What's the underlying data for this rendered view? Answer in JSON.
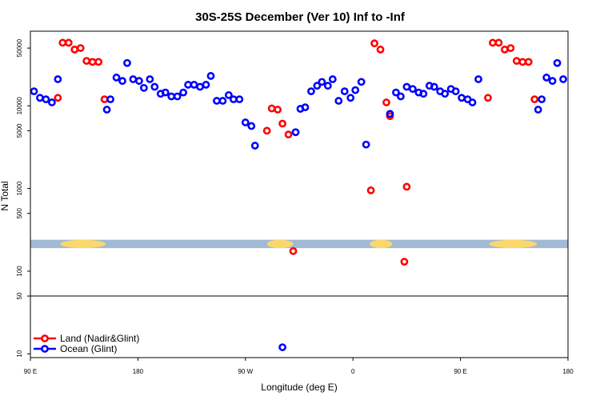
{
  "chart_data": {
    "type": "scatter",
    "title": "30S-25S December (Ver 10)   Inf to -Inf",
    "xlabel": "Longitude (deg E)",
    "ylabel": "N Total",
    "x_ticks": [
      {
        "value": 90,
        "label": "90 E"
      },
      {
        "value": 180,
        "label": "180"
      },
      {
        "value": 270,
        "label": "90 W"
      },
      {
        "value": 360,
        "label": "0"
      },
      {
        "value": 450,
        "label": "90 E"
      },
      {
        "value": 540,
        "label": "180"
      }
    ],
    "y_ticks": [
      {
        "value": 10,
        "label": "10"
      },
      {
        "value": 50,
        "label": "50"
      },
      {
        "value": 100,
        "label": "100"
      },
      {
        "value": 500,
        "label": "500"
      },
      {
        "value": 1000,
        "label": "1000"
      },
      {
        "value": 5000,
        "label": "5000"
      },
      {
        "value": 10000,
        "label": "10000"
      },
      {
        "value": 50000,
        "label": "50000"
      }
    ],
    "xlim": [
      90,
      540
    ],
    "ylim": [
      9,
      80000
    ],
    "y_scale": "log",
    "reference_line_y": 50,
    "land_band": {
      "y_range": [
        190,
        240
      ],
      "ocean_color": "#a2b9d6",
      "land_color": "#fad86b",
      "land_segments": [
        [
          115,
          153
        ],
        [
          288,
          310
        ],
        [
          374,
          393
        ],
        [
          474,
          514
        ]
      ]
    },
    "series": [
      {
        "name": "Land (Nadir&Glint)",
        "color": "#ff0000",
        "points": [
          {
            "x": 113,
            "y": 12500
          },
          {
            "x": 117,
            "y": 58000
          },
          {
            "x": 122,
            "y": 58000
          },
          {
            "x": 127,
            "y": 48000
          },
          {
            "x": 132,
            "y": 50000
          },
          {
            "x": 137,
            "y": 35000
          },
          {
            "x": 142,
            "y": 34000
          },
          {
            "x": 147,
            "y": 34000
          },
          {
            "x": 152,
            "y": 12000
          },
          {
            "x": 288,
            "y": 5000
          },
          {
            "x": 292,
            "y": 9300
          },
          {
            "x": 297,
            "y": 9000
          },
          {
            "x": 301,
            "y": 6100
          },
          {
            "x": 306,
            "y": 4500
          },
          {
            "x": 310,
            "y": 175
          },
          {
            "x": 375,
            "y": 950
          },
          {
            "x": 378,
            "y": 57000
          },
          {
            "x": 383,
            "y": 48000
          },
          {
            "x": 388,
            "y": 11000
          },
          {
            "x": 391,
            "y": 7500
          },
          {
            "x": 403,
            "y": 130
          },
          {
            "x": 405,
            "y": 1050
          },
          {
            "x": 473,
            "y": 12500
          },
          {
            "x": 477,
            "y": 58000
          },
          {
            "x": 482,
            "y": 58000
          },
          {
            "x": 487,
            "y": 48000
          },
          {
            "x": 492,
            "y": 50000
          },
          {
            "x": 497,
            "y": 35000
          },
          {
            "x": 502,
            "y": 34000
          },
          {
            "x": 507,
            "y": 34000
          },
          {
            "x": 512,
            "y": 12000
          }
        ]
      },
      {
        "name": "Ocean (Glint)",
        "color": "#0000ff",
        "points": [
          {
            "x": 93,
            "y": 15000
          },
          {
            "x": 98,
            "y": 12500
          },
          {
            "x": 103,
            "y": 12000
          },
          {
            "x": 108,
            "y": 11000
          },
          {
            "x": 113,
            "y": 21000
          },
          {
            "x": 154,
            "y": 9000
          },
          {
            "x": 157,
            "y": 12000
          },
          {
            "x": 162,
            "y": 22000
          },
          {
            "x": 167,
            "y": 20000
          },
          {
            "x": 171,
            "y": 33000
          },
          {
            "x": 176,
            "y": 21000
          },
          {
            "x": 181,
            "y": 20000
          },
          {
            "x": 185,
            "y": 16500
          },
          {
            "x": 190,
            "y": 21000
          },
          {
            "x": 194,
            "y": 17000
          },
          {
            "x": 199,
            "y": 14000
          },
          {
            "x": 203,
            "y": 14500
          },
          {
            "x": 208,
            "y": 13000
          },
          {
            "x": 213,
            "y": 13000
          },
          {
            "x": 218,
            "y": 14500
          },
          {
            "x": 222,
            "y": 18000
          },
          {
            "x": 227,
            "y": 18000
          },
          {
            "x": 232,
            "y": 17000
          },
          {
            "x": 237,
            "y": 18000
          },
          {
            "x": 241,
            "y": 23000
          },
          {
            "x": 246,
            "y": 11500
          },
          {
            "x": 251,
            "y": 11500
          },
          {
            "x": 256,
            "y": 13500
          },
          {
            "x": 260,
            "y": 12000
          },
          {
            "x": 265,
            "y": 12000
          },
          {
            "x": 270,
            "y": 6300
          },
          {
            "x": 275,
            "y": 5700
          },
          {
            "x": 278,
            "y": 3300
          },
          {
            "x": 312,
            "y": 4800
          },
          {
            "x": 316,
            "y": 9200
          },
          {
            "x": 320,
            "y": 9600
          },
          {
            "x": 325,
            "y": 15000
          },
          {
            "x": 330,
            "y": 17500
          },
          {
            "x": 334,
            "y": 19500
          },
          {
            "x": 339,
            "y": 17500
          },
          {
            "x": 343,
            "y": 21000
          },
          {
            "x": 348,
            "y": 11500
          },
          {
            "x": 353,
            "y": 15000
          },
          {
            "x": 358,
            "y": 12500
          },
          {
            "x": 362,
            "y": 15500
          },
          {
            "x": 367,
            "y": 19500
          },
          {
            "x": 371,
            "y": 3400
          },
          {
            "x": 391,
            "y": 8000
          },
          {
            "x": 396,
            "y": 14500
          },
          {
            "x": 400,
            "y": 13000
          },
          {
            "x": 405,
            "y": 17000
          },
          {
            "x": 410,
            "y": 16000
          },
          {
            "x": 415,
            "y": 14500
          },
          {
            "x": 419,
            "y": 14000
          },
          {
            "x": 424,
            "y": 17500
          },
          {
            "x": 428,
            "y": 17000
          },
          {
            "x": 433,
            "y": 15000
          },
          {
            "x": 437,
            "y": 14000
          },
          {
            "x": 442,
            "y": 16000
          },
          {
            "x": 446,
            "y": 15000
          },
          {
            "x": 451,
            "y": 12500
          },
          {
            "x": 456,
            "y": 12000
          },
          {
            "x": 460,
            "y": 11000
          },
          {
            "x": 465,
            "y": 21000
          },
          {
            "x": 515,
            "y": 9000
          },
          {
            "x": 518,
            "y": 12000
          },
          {
            "x": 522,
            "y": 22000
          },
          {
            "x": 527,
            "y": 20000
          },
          {
            "x": 531,
            "y": 33000
          },
          {
            "x": 536,
            "y": 21000
          },
          {
            "x": 301,
            "y": 12
          }
        ]
      }
    ]
  }
}
